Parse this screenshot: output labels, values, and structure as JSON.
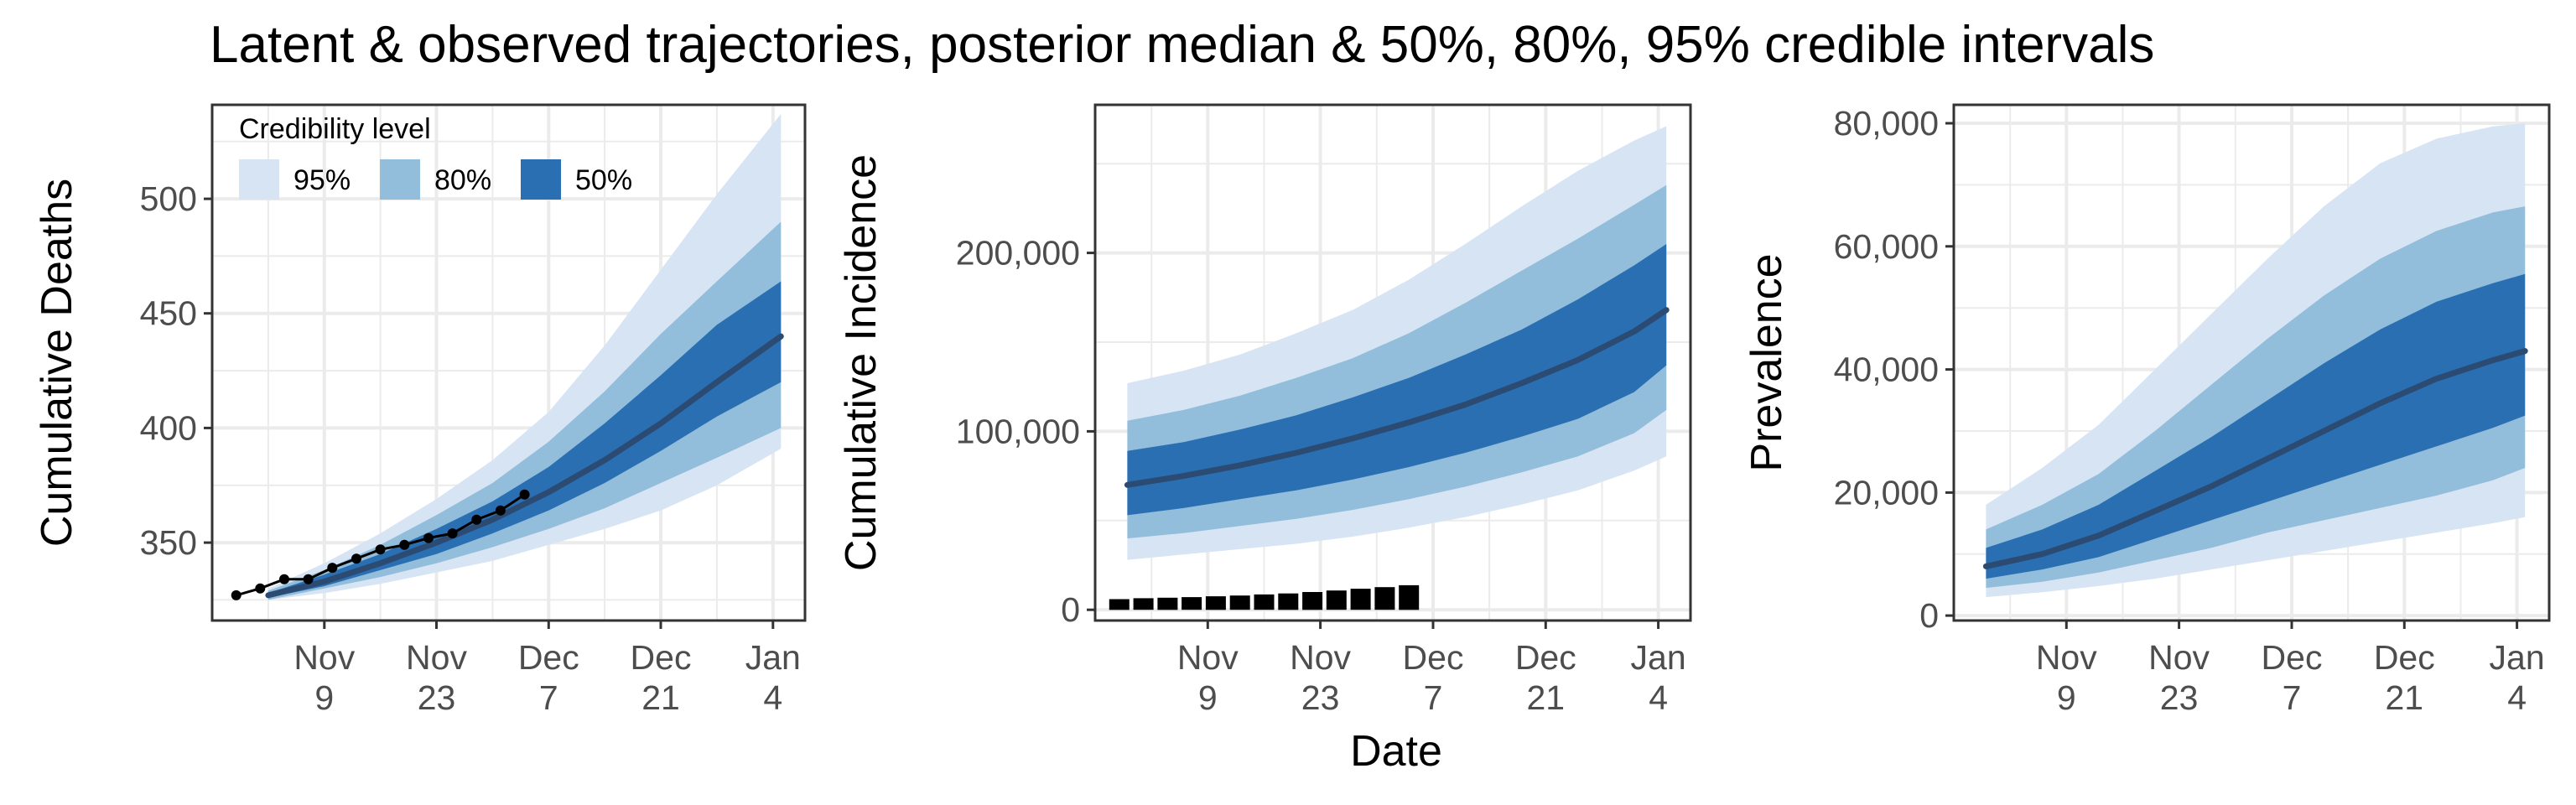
{
  "title": "Latent & observed trajectories, posterior median & 50%, 80%, 95% credible intervals",
  "xlabel": "Date",
  "colors": {
    "ci95": "#d6e4f3",
    "ci80": "#92bddb",
    "ci50": "#2b6fb3",
    "median": "#2b4b73",
    "observed": "#000000",
    "grid": "#ebebeb",
    "panel_border": "#333333"
  },
  "legend": {
    "title": "Credibility level",
    "items": [
      {
        "label": "95%",
        "color": "#d6e4f3"
      },
      {
        "label": "80%",
        "color": "#92bddb"
      },
      {
        "label": "50%",
        "color": "#2b6fb3"
      }
    ],
    "placement": "inside top-left of first panel"
  },
  "chart_data": [
    {
      "type": "area",
      "ylabel": "Cumulative Deaths",
      "x_tick_labels": [
        [
          "Nov",
          "9"
        ],
        [
          "Nov",
          "23"
        ],
        [
          "Dec",
          "7"
        ],
        [
          "Dec",
          "21"
        ],
        [
          "Jan",
          "4"
        ]
      ],
      "x_tick_dates": [
        "2020-11-09",
        "2020-11-23",
        "2020-12-07",
        "2020-12-21",
        "2021-01-04"
      ],
      "x_range": [
        "2020-10-26",
        "2021-01-08"
      ],
      "y_ticks": [
        350,
        400,
        450,
        500
      ],
      "y_tick_labels": [
        "350",
        "400",
        "450",
        "500"
      ],
      "ylim": [
        316,
        541
      ],
      "grid": true,
      "bands_x": [
        "2020-11-02",
        "2020-11-09",
        "2020-11-16",
        "2020-11-23",
        "2020-11-30",
        "2020-12-07",
        "2020-12-14",
        "2020-12-21",
        "2020-12-28",
        "2021-01-05"
      ],
      "bands": {
        "median": [
          327,
          333,
          341,
          350,
          360,
          372,
          386,
          402,
          420,
          440
        ],
        "ci50": [
          [
            326,
            328
          ],
          [
            331,
            336
          ],
          [
            338,
            345
          ],
          [
            345,
            356
          ],
          [
            354,
            368
          ],
          [
            364,
            383
          ],
          [
            376,
            402
          ],
          [
            390,
            423
          ],
          [
            405,
            445
          ],
          [
            420,
            464
          ]
        ],
        "ci80": [
          [
            325,
            329
          ],
          [
            330,
            338
          ],
          [
            335,
            349
          ],
          [
            341,
            362
          ],
          [
            348,
            376
          ],
          [
            356,
            394
          ],
          [
            365,
            416
          ],
          [
            376,
            441
          ],
          [
            387,
            464
          ],
          [
            400,
            490
          ]
        ],
        "ci95": [
          [
            325,
            330
          ],
          [
            328,
            341
          ],
          [
            332,
            354
          ],
          [
            337,
            369
          ],
          [
            342,
            386
          ],
          [
            349,
            407
          ],
          [
            356,
            436
          ],
          [
            364,
            469
          ],
          [
            375,
            502
          ],
          [
            391,
            537
          ]
        ]
      },
      "observed": {
        "type": "line+points",
        "x": [
          "2020-10-29",
          "2020-11-01",
          "2020-11-04",
          "2020-11-07",
          "2020-11-10",
          "2020-11-13",
          "2020-11-16",
          "2020-11-19",
          "2020-11-22",
          "2020-11-25",
          "2020-11-28",
          "2020-12-01",
          "2020-12-04"
        ],
        "y": [
          327,
          330,
          334,
          334,
          339,
          343,
          347,
          349,
          352,
          354,
          360,
          364,
          371
        ]
      }
    },
    {
      "type": "area",
      "ylabel": "Cumulative Incidence",
      "x_tick_labels": [
        [
          "Nov",
          "9"
        ],
        [
          "Nov",
          "23"
        ],
        [
          "Dec",
          "7"
        ],
        [
          "Dec",
          "21"
        ],
        [
          "Jan",
          "4"
        ]
      ],
      "x_tick_dates": [
        "2020-11-09",
        "2020-11-23",
        "2020-12-07",
        "2020-12-21",
        "2021-01-04"
      ],
      "x_range": [
        "2020-10-26",
        "2021-01-08"
      ],
      "y_ticks": [
        0,
        100000,
        200000
      ],
      "y_tick_labels": [
        "0",
        "100,000",
        "200,000"
      ],
      "ylim": [
        -6000,
        283000
      ],
      "grid": true,
      "bands_x": [
        "2020-10-30",
        "2020-11-06",
        "2020-11-13",
        "2020-11-20",
        "2020-11-27",
        "2020-12-04",
        "2020-12-11",
        "2020-12-18",
        "2020-12-25",
        "2021-01-01",
        "2021-01-05"
      ],
      "bands": {
        "median": [
          70000,
          75000,
          81000,
          88000,
          96000,
          105000,
          115000,
          127000,
          140000,
          156000,
          168000
        ],
        "ci50": [
          [
            53000,
            89000
          ],
          [
            57000,
            94000
          ],
          [
            62000,
            101000
          ],
          [
            67000,
            109000
          ],
          [
            73000,
            119000
          ],
          [
            80000,
            130000
          ],
          [
            88000,
            143000
          ],
          [
            97000,
            157000
          ],
          [
            107000,
            174000
          ],
          [
            122000,
            193000
          ],
          [
            137000,
            205000
          ]
        ],
        "ci80": [
          [
            40000,
            106000
          ],
          [
            43000,
            112000
          ],
          [
            47000,
            120000
          ],
          [
            51000,
            130000
          ],
          [
            56000,
            141000
          ],
          [
            62000,
            155000
          ],
          [
            69000,
            172000
          ],
          [
            77000,
            190000
          ],
          [
            86000,
            208000
          ],
          [
            99000,
            227000
          ],
          [
            112000,
            238000
          ]
        ],
        "ci95": [
          [
            28000,
            127000
          ],
          [
            31000,
            134000
          ],
          [
            34000,
            143000
          ],
          [
            37000,
            155000
          ],
          [
            41000,
            168000
          ],
          [
            46000,
            185000
          ],
          [
            52000,
            205000
          ],
          [
            59000,
            226000
          ],
          [
            67000,
            246000
          ],
          [
            78000,
            263000
          ],
          [
            86000,
            271000
          ]
        ]
      },
      "observed": {
        "type": "bar",
        "x": [
          "2020-10-29",
          "2020-11-01",
          "2020-11-04",
          "2020-11-07",
          "2020-11-10",
          "2020-11-13",
          "2020-11-16",
          "2020-11-19",
          "2020-11-22",
          "2020-11-25",
          "2020-11-28",
          "2020-12-01",
          "2020-12-04"
        ],
        "y": [
          6000,
          6500,
          6800,
          7100,
          7600,
          8000,
          8600,
          9200,
          10000,
          10800,
          11800,
          12700,
          13800
        ]
      }
    },
    {
      "type": "area",
      "ylabel": "Prevalence",
      "x_tick_labels": [
        [
          "Nov",
          "9"
        ],
        [
          "Nov",
          "23"
        ],
        [
          "Dec",
          "7"
        ],
        [
          "Dec",
          "21"
        ],
        [
          "Jan",
          "4"
        ]
      ],
      "x_tick_dates": [
        "2020-11-09",
        "2020-11-23",
        "2020-12-07",
        "2020-12-21",
        "2021-01-04"
      ],
      "x_range": [
        "2020-10-26",
        "2021-01-08"
      ],
      "y_ticks": [
        0,
        20000,
        40000,
        60000,
        80000
      ],
      "y_tick_labels": [
        "0",
        "20,000",
        "40,000",
        "60,000",
        "80,000"
      ],
      "ylim": [
        -800,
        83000
      ],
      "grid": true,
      "bands_x": [
        "2020-10-30",
        "2020-11-06",
        "2020-11-13",
        "2020-11-20",
        "2020-11-27",
        "2020-12-04",
        "2020-12-11",
        "2020-12-18",
        "2020-12-25",
        "2021-01-01",
        "2021-01-05"
      ],
      "bands": {
        "median": [
          8000,
          10000,
          13000,
          17000,
          21000,
          25500,
          30000,
          34500,
          38500,
          41500,
          43000
        ],
        "ci50": [
          [
            6000,
            11000
          ],
          [
            7500,
            14000
          ],
          [
            9500,
            18000
          ],
          [
            12500,
            23500
          ],
          [
            15500,
            29000
          ],
          [
            18500,
            35000
          ],
          [
            21500,
            41000
          ],
          [
            24500,
            46500
          ],
          [
            27500,
            51000
          ],
          [
            30500,
            54000
          ],
          [
            32500,
            55500
          ]
        ],
        "ci80": [
          [
            4500,
            14000
          ],
          [
            5500,
            18000
          ],
          [
            7000,
            23000
          ],
          [
            9000,
            30000
          ],
          [
            11000,
            37500
          ],
          [
            13500,
            45000
          ],
          [
            15500,
            52000
          ],
          [
            17500,
            58000
          ],
          [
            19500,
            62500
          ],
          [
            22000,
            65500
          ],
          [
            24000,
            66500
          ]
        ],
        "ci95": [
          [
            3000,
            18000
          ],
          [
            3800,
            24000
          ],
          [
            4800,
            31000
          ],
          [
            6000,
            40000
          ],
          [
            7500,
            49000
          ],
          [
            9000,
            58000
          ],
          [
            10500,
            66500
          ],
          [
            12000,
            73500
          ],
          [
            13500,
            77500
          ],
          [
            15000,
            79500
          ],
          [
            16000,
            80000
          ]
        ]
      }
    }
  ]
}
